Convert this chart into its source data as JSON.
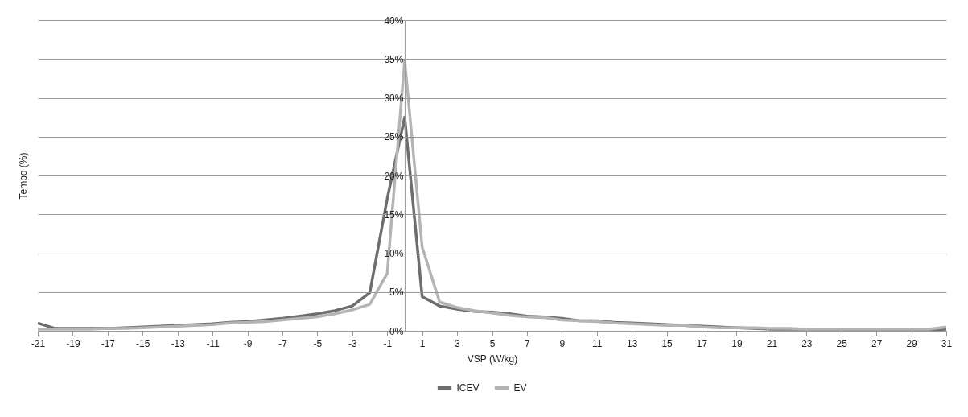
{
  "chart_data": {
    "type": "line",
    "xlabel": "VSP (W/kg)",
    "ylabel": "Tempo (%)",
    "x": [
      -21,
      -20,
      -19,
      -18,
      -17,
      -16,
      -15,
      -14,
      -13,
      -12,
      -11,
      -10,
      -9,
      -8,
      -7,
      -6,
      -5,
      -4,
      -3,
      -2,
      -1,
      0,
      1,
      2,
      3,
      4,
      5,
      6,
      7,
      8,
      9,
      10,
      11,
      12,
      13,
      14,
      15,
      16,
      17,
      18,
      19,
      20,
      21,
      22,
      23,
      24,
      25,
      26,
      27,
      28,
      29,
      30,
      31
    ],
    "series": [
      {
        "name": "ICEV",
        "color": "#6e6e6e",
        "values": [
          1.0,
          0.3,
          0.3,
          0.3,
          0.3,
          0.4,
          0.5,
          0.6,
          0.7,
          0.8,
          0.9,
          1.1,
          1.2,
          1.4,
          1.6,
          1.9,
          2.2,
          2.6,
          3.2,
          4.9,
          17,
          27.5,
          4.4,
          3.2,
          2.8,
          2.5,
          2.4,
          2.2,
          1.9,
          1.8,
          1.6,
          1.3,
          1.3,
          1.1,
          1.0,
          0.9,
          0.8,
          0.7,
          0.6,
          0.5,
          0.4,
          0.3,
          0.2,
          0.2,
          0.2,
          0.1,
          0.1,
          0.1,
          0.1,
          0.1,
          0.1,
          0.1,
          0.2
        ]
      },
      {
        "name": "EV",
        "color": "#b4b4b4",
        "values": [
          0.2,
          0.2,
          0.2,
          0.2,
          0.3,
          0.3,
          0.4,
          0.5,
          0.6,
          0.7,
          0.8,
          1.0,
          1.1,
          1.2,
          1.4,
          1.6,
          1.8,
          2.2,
          2.7,
          3.4,
          7.4,
          34.8,
          10.8,
          3.7,
          3.0,
          2.6,
          2.3,
          2.0,
          1.8,
          1.7,
          1.4,
          1.3,
          1.2,
          1.0,
          0.9,
          0.8,
          0.7,
          0.7,
          0.5,
          0.4,
          0.4,
          0.4,
          0.3,
          0.3,
          0.2,
          0.2,
          0.2,
          0.2,
          0.2,
          0.2,
          0.2,
          0.2,
          0.5
        ]
      }
    ],
    "xlim": [
      -21,
      31
    ],
    "xticks": [
      -21,
      -19,
      -17,
      -15,
      -13,
      -11,
      -9,
      -7,
      -5,
      -3,
      -1,
      1,
      3,
      5,
      7,
      9,
      11,
      13,
      15,
      17,
      19,
      21,
      23,
      25,
      27,
      29,
      31
    ],
    "ylim": [
      0,
      40
    ],
    "yticks": [
      {
        "value": 0,
        "label": "0%"
      },
      {
        "value": 5,
        "label": "5%"
      },
      {
        "value": 10,
        "label": "10%"
      },
      {
        "value": 15,
        "label": "15%"
      },
      {
        "value": 20,
        "label": "20%"
      },
      {
        "value": 25,
        "label": "25%"
      },
      {
        "value": 30,
        "label": "30%"
      },
      {
        "value": 35,
        "label": "35%"
      },
      {
        "value": 40,
        "label": "40%"
      }
    ],
    "grid": "y",
    "legend": "bottom",
    "marker": "none",
    "line_style": "solid"
  }
}
